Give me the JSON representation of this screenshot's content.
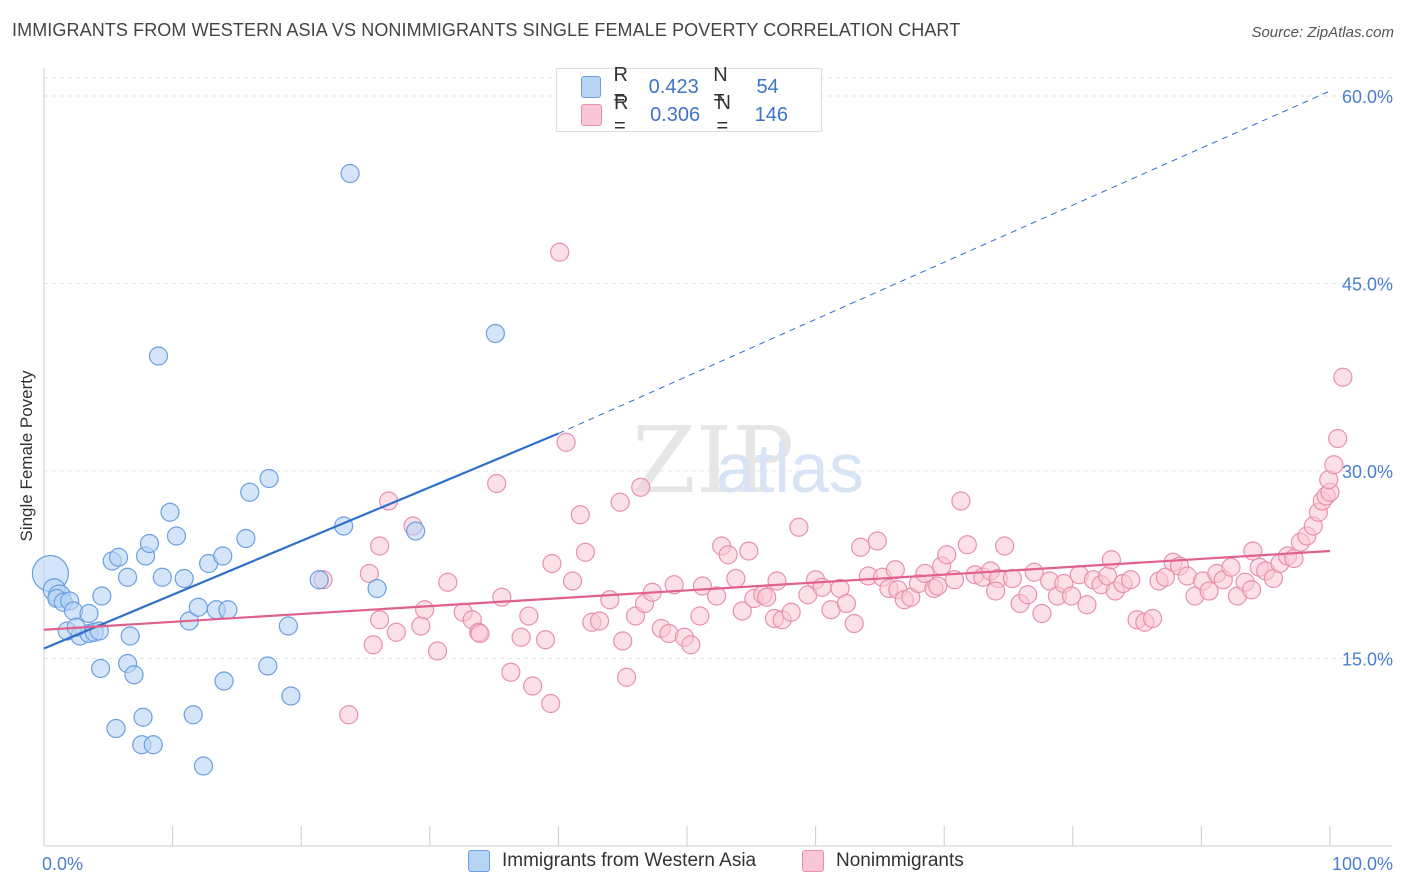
{
  "title": "IMMIGRANTS FROM WESTERN ASIA VS NONIMMIGRANTS SINGLE FEMALE POVERTY CORRELATION CHART",
  "source": "Source: ZipAtlas.com",
  "watermark": {
    "zip": "ZIP",
    "atlas": "atlas"
  },
  "legend": {
    "rows": [
      {
        "r_label": "R =",
        "r_value": "0.423",
        "n_label": "N =",
        "n_value": "54",
        "color": "#b8d4f5",
        "border": "#6a9fe0"
      },
      {
        "r_label": "R =",
        "r_value": "0.306",
        "n_label": "N =",
        "n_value": "146",
        "color": "#f9c6d6",
        "border": "#e890ab"
      }
    ]
  },
  "bottom_legend": {
    "series1": "Immigrants from Western Asia",
    "series2": "Nonimmigrants"
  },
  "chart_data": {
    "type": "scatter",
    "title": "IMMIGRANTS FROM WESTERN ASIA VS NONIMMIGRANTS SINGLE FEMALE POVERTY CORRELATION CHART",
    "xlabel": "",
    "ylabel": "Single Female Poverty",
    "xlim": [
      0,
      100
    ],
    "ylim": [
      0,
      60
    ],
    "x_tick_labels": [
      "0.0%",
      "100.0%"
    ],
    "y_ticks": [
      15,
      30,
      45,
      60
    ],
    "y_tick_labels": [
      "15.0%",
      "30.0%",
      "45.0%",
      "60.0%"
    ],
    "grid": true,
    "colors": {
      "blue": "#4a86d8",
      "blue_fill": "#b8d4f5",
      "pink": "#e0608e",
      "pink_fill": "#f9c6d6",
      "blue_line": "#2d6fc9",
      "pink_line": "#e0608e",
      "tick_text": "#4a7fd0"
    },
    "series": [
      {
        "name": "Immigrants from Western Asia",
        "trend": {
          "x0": 0,
          "y0": 15.8,
          "x1": 40,
          "y1": 33.0,
          "dashed_to_x": 100,
          "dashed_to_y": 60.4
        },
        "points": [
          [
            0.5,
            21.8
          ],
          [
            0.8,
            20.5
          ],
          [
            1.2,
            20.0
          ],
          [
            1.0,
            19.8
          ],
          [
            1.5,
            19.5
          ],
          [
            2.0,
            19.6
          ],
          [
            2.3,
            18.8
          ],
          [
            3.5,
            18.6
          ],
          [
            1.8,
            17.2
          ],
          [
            2.8,
            16.8
          ],
          [
            3.5,
            17.0
          ],
          [
            3.9,
            17.1
          ],
          [
            4.3,
            17.2
          ],
          [
            4.5,
            20.0
          ],
          [
            5.3,
            22.8
          ],
          [
            5.8,
            23.1
          ],
          [
            6.5,
            21.5
          ],
          [
            6.7,
            16.8
          ],
          [
            7.9,
            23.2
          ],
          [
            8.2,
            24.2
          ],
          [
            8.9,
            39.2
          ],
          [
            9.2,
            21.5
          ],
          [
            9.8,
            26.7
          ],
          [
            10.3,
            24.8
          ],
          [
            10.9,
            21.4
          ],
          [
            11.3,
            18.0
          ],
          [
            12.0,
            19.1
          ],
          [
            12.8,
            22.6
          ],
          [
            13.4,
            18.9
          ],
          [
            13.9,
            23.2
          ],
          [
            14.3,
            18.9
          ],
          [
            15.7,
            24.6
          ],
          [
            16.0,
            28.3
          ],
          [
            17.5,
            29.4
          ],
          [
            19.0,
            17.6
          ],
          [
            21.4,
            21.3
          ],
          [
            23.3,
            25.6
          ],
          [
            23.8,
            53.8
          ],
          [
            25.9,
            20.6
          ],
          [
            28.9,
            25.2
          ],
          [
            35.1,
            41.0
          ],
          [
            4.4,
            14.2
          ],
          [
            6.5,
            14.6
          ],
          [
            7.0,
            13.7
          ],
          [
            5.6,
            9.4
          ],
          [
            7.7,
            10.3
          ],
          [
            7.6,
            8.1
          ],
          [
            8.5,
            8.1
          ],
          [
            11.6,
            10.5
          ],
          [
            12.4,
            6.4
          ],
          [
            14.0,
            13.2
          ],
          [
            17.4,
            14.4
          ],
          [
            19.2,
            12.0
          ],
          [
            2.5,
            17.5
          ]
        ]
      },
      {
        "name": "Nonimmigrants",
        "trend": {
          "x0": 0,
          "y0": 17.3,
          "x1": 100,
          "y1": 23.6
        },
        "points": [
          [
            21.7,
            21.3
          ],
          [
            23.7,
            10.5
          ],
          [
            25.3,
            21.8
          ],
          [
            25.6,
            16.1
          ],
          [
            26.1,
            24.0
          ],
          [
            26.1,
            18.1
          ],
          [
            26.8,
            27.6
          ],
          [
            27.4,
            17.1
          ],
          [
            28.7,
            25.6
          ],
          [
            29.3,
            17.6
          ],
          [
            29.6,
            18.9
          ],
          [
            30.6,
            15.6
          ],
          [
            31.4,
            21.1
          ],
          [
            32.6,
            18.7
          ],
          [
            33.3,
            18.1
          ],
          [
            33.8,
            17.1
          ],
          [
            33.9,
            17.0
          ],
          [
            35.2,
            29.0
          ],
          [
            35.6,
            19.9
          ],
          [
            36.3,
            13.9
          ],
          [
            37.1,
            16.7
          ],
          [
            37.7,
            18.4
          ],
          [
            38.0,
            12.8
          ],
          [
            39.0,
            16.5
          ],
          [
            39.4,
            11.4
          ],
          [
            39.5,
            22.6
          ],
          [
            40.1,
            47.5
          ],
          [
            40.6,
            32.3
          ],
          [
            41.1,
            21.2
          ],
          [
            41.7,
            26.5
          ],
          [
            42.1,
            23.5
          ],
          [
            42.6,
            17.9
          ],
          [
            43.2,
            18.0
          ],
          [
            44.0,
            19.7
          ],
          [
            44.8,
            27.5
          ],
          [
            45.0,
            16.4
          ],
          [
            45.3,
            13.5
          ],
          [
            46.0,
            18.4
          ],
          [
            46.4,
            28.7
          ],
          [
            46.7,
            19.4
          ],
          [
            47.3,
            20.3
          ],
          [
            48.0,
            17.4
          ],
          [
            48.6,
            17.0
          ],
          [
            49.0,
            20.9
          ],
          [
            49.8,
            16.7
          ],
          [
            50.3,
            16.1
          ],
          [
            51.0,
            18.4
          ],
          [
            51.2,
            20.8
          ],
          [
            52.3,
            20.0
          ],
          [
            52.7,
            24.0
          ],
          [
            53.2,
            23.3
          ],
          [
            53.8,
            21.4
          ],
          [
            54.3,
            18.8
          ],
          [
            54.8,
            23.6
          ],
          [
            55.2,
            19.8
          ],
          [
            55.9,
            20.1
          ],
          [
            56.2,
            19.9
          ],
          [
            56.8,
            18.2
          ],
          [
            57.4,
            18.1
          ],
          [
            58.1,
            18.7
          ],
          [
            58.7,
            25.5
          ],
          [
            59.4,
            20.1
          ],
          [
            60.0,
            21.3
          ],
          [
            60.5,
            20.7
          ],
          [
            61.2,
            18.9
          ],
          [
            61.9,
            20.6
          ],
          [
            62.4,
            19.4
          ],
          [
            63.0,
            17.8
          ],
          [
            63.5,
            23.9
          ],
          [
            64.1,
            21.6
          ],
          [
            64.8,
            24.4
          ],
          [
            65.2,
            21.5
          ],
          [
            65.7,
            20.6
          ],
          [
            66.4,
            20.5
          ],
          [
            66.9,
            19.7
          ],
          [
            67.4,
            19.9
          ],
          [
            68.0,
            21.0
          ],
          [
            68.5,
            21.8
          ],
          [
            69.2,
            20.6
          ],
          [
            69.8,
            22.4
          ],
          [
            70.2,
            23.3
          ],
          [
            70.8,
            21.3
          ],
          [
            71.3,
            27.6
          ],
          [
            71.8,
            24.1
          ],
          [
            72.4,
            21.7
          ],
          [
            73.0,
            21.5
          ],
          [
            73.6,
            22.0
          ],
          [
            74.2,
            21.4
          ],
          [
            74.7,
            24.0
          ],
          [
            75.3,
            21.4
          ],
          [
            75.9,
            19.4
          ],
          [
            76.5,
            20.1
          ],
          [
            77.0,
            21.9
          ],
          [
            77.6,
            18.6
          ],
          [
            78.2,
            21.2
          ],
          [
            78.8,
            20.0
          ],
          [
            79.3,
            21.0
          ],
          [
            79.9,
            20.0
          ],
          [
            80.5,
            21.7
          ],
          [
            81.1,
            19.3
          ],
          [
            81.6,
            21.3
          ],
          [
            82.2,
            20.9
          ],
          [
            82.7,
            21.6
          ],
          [
            83.3,
            20.4
          ],
          [
            83.9,
            21.0
          ],
          [
            84.5,
            21.3
          ],
          [
            85.0,
            18.1
          ],
          [
            85.6,
            17.9
          ],
          [
            86.2,
            18.2
          ],
          [
            86.7,
            21.2
          ],
          [
            87.2,
            21.5
          ],
          [
            87.8,
            22.7
          ],
          [
            88.3,
            22.4
          ],
          [
            88.9,
            21.6
          ],
          [
            89.5,
            20.0
          ],
          [
            90.1,
            21.2
          ],
          [
            90.6,
            20.4
          ],
          [
            91.2,
            21.8
          ],
          [
            91.7,
            21.3
          ],
          [
            92.3,
            22.3
          ],
          [
            92.8,
            20.0
          ],
          [
            93.4,
            21.1
          ],
          [
            93.9,
            20.5
          ],
          [
            94.5,
            22.3
          ],
          [
            95.0,
            22.0
          ],
          [
            95.6,
            21.4
          ],
          [
            96.1,
            22.6
          ],
          [
            96.7,
            23.2
          ],
          [
            97.2,
            23.0
          ],
          [
            97.7,
            24.3
          ],
          [
            98.2,
            24.8
          ],
          [
            98.7,
            25.6
          ],
          [
            99.1,
            26.7
          ],
          [
            99.4,
            27.6
          ],
          [
            99.7,
            28.0
          ],
          [
            100.0,
            28.3
          ],
          [
            99.9,
            29.3
          ],
          [
            100.3,
            30.5
          ],
          [
            100.6,
            32.6
          ],
          [
            101.0,
            37.5
          ],
          [
            83.0,
            22.9
          ],
          [
            69.5,
            20.8
          ],
          [
            74.0,
            20.4
          ],
          [
            66.2,
            22.1
          ],
          [
            57.0,
            21.2
          ],
          [
            94.0,
            23.6
          ]
        ]
      }
    ]
  }
}
